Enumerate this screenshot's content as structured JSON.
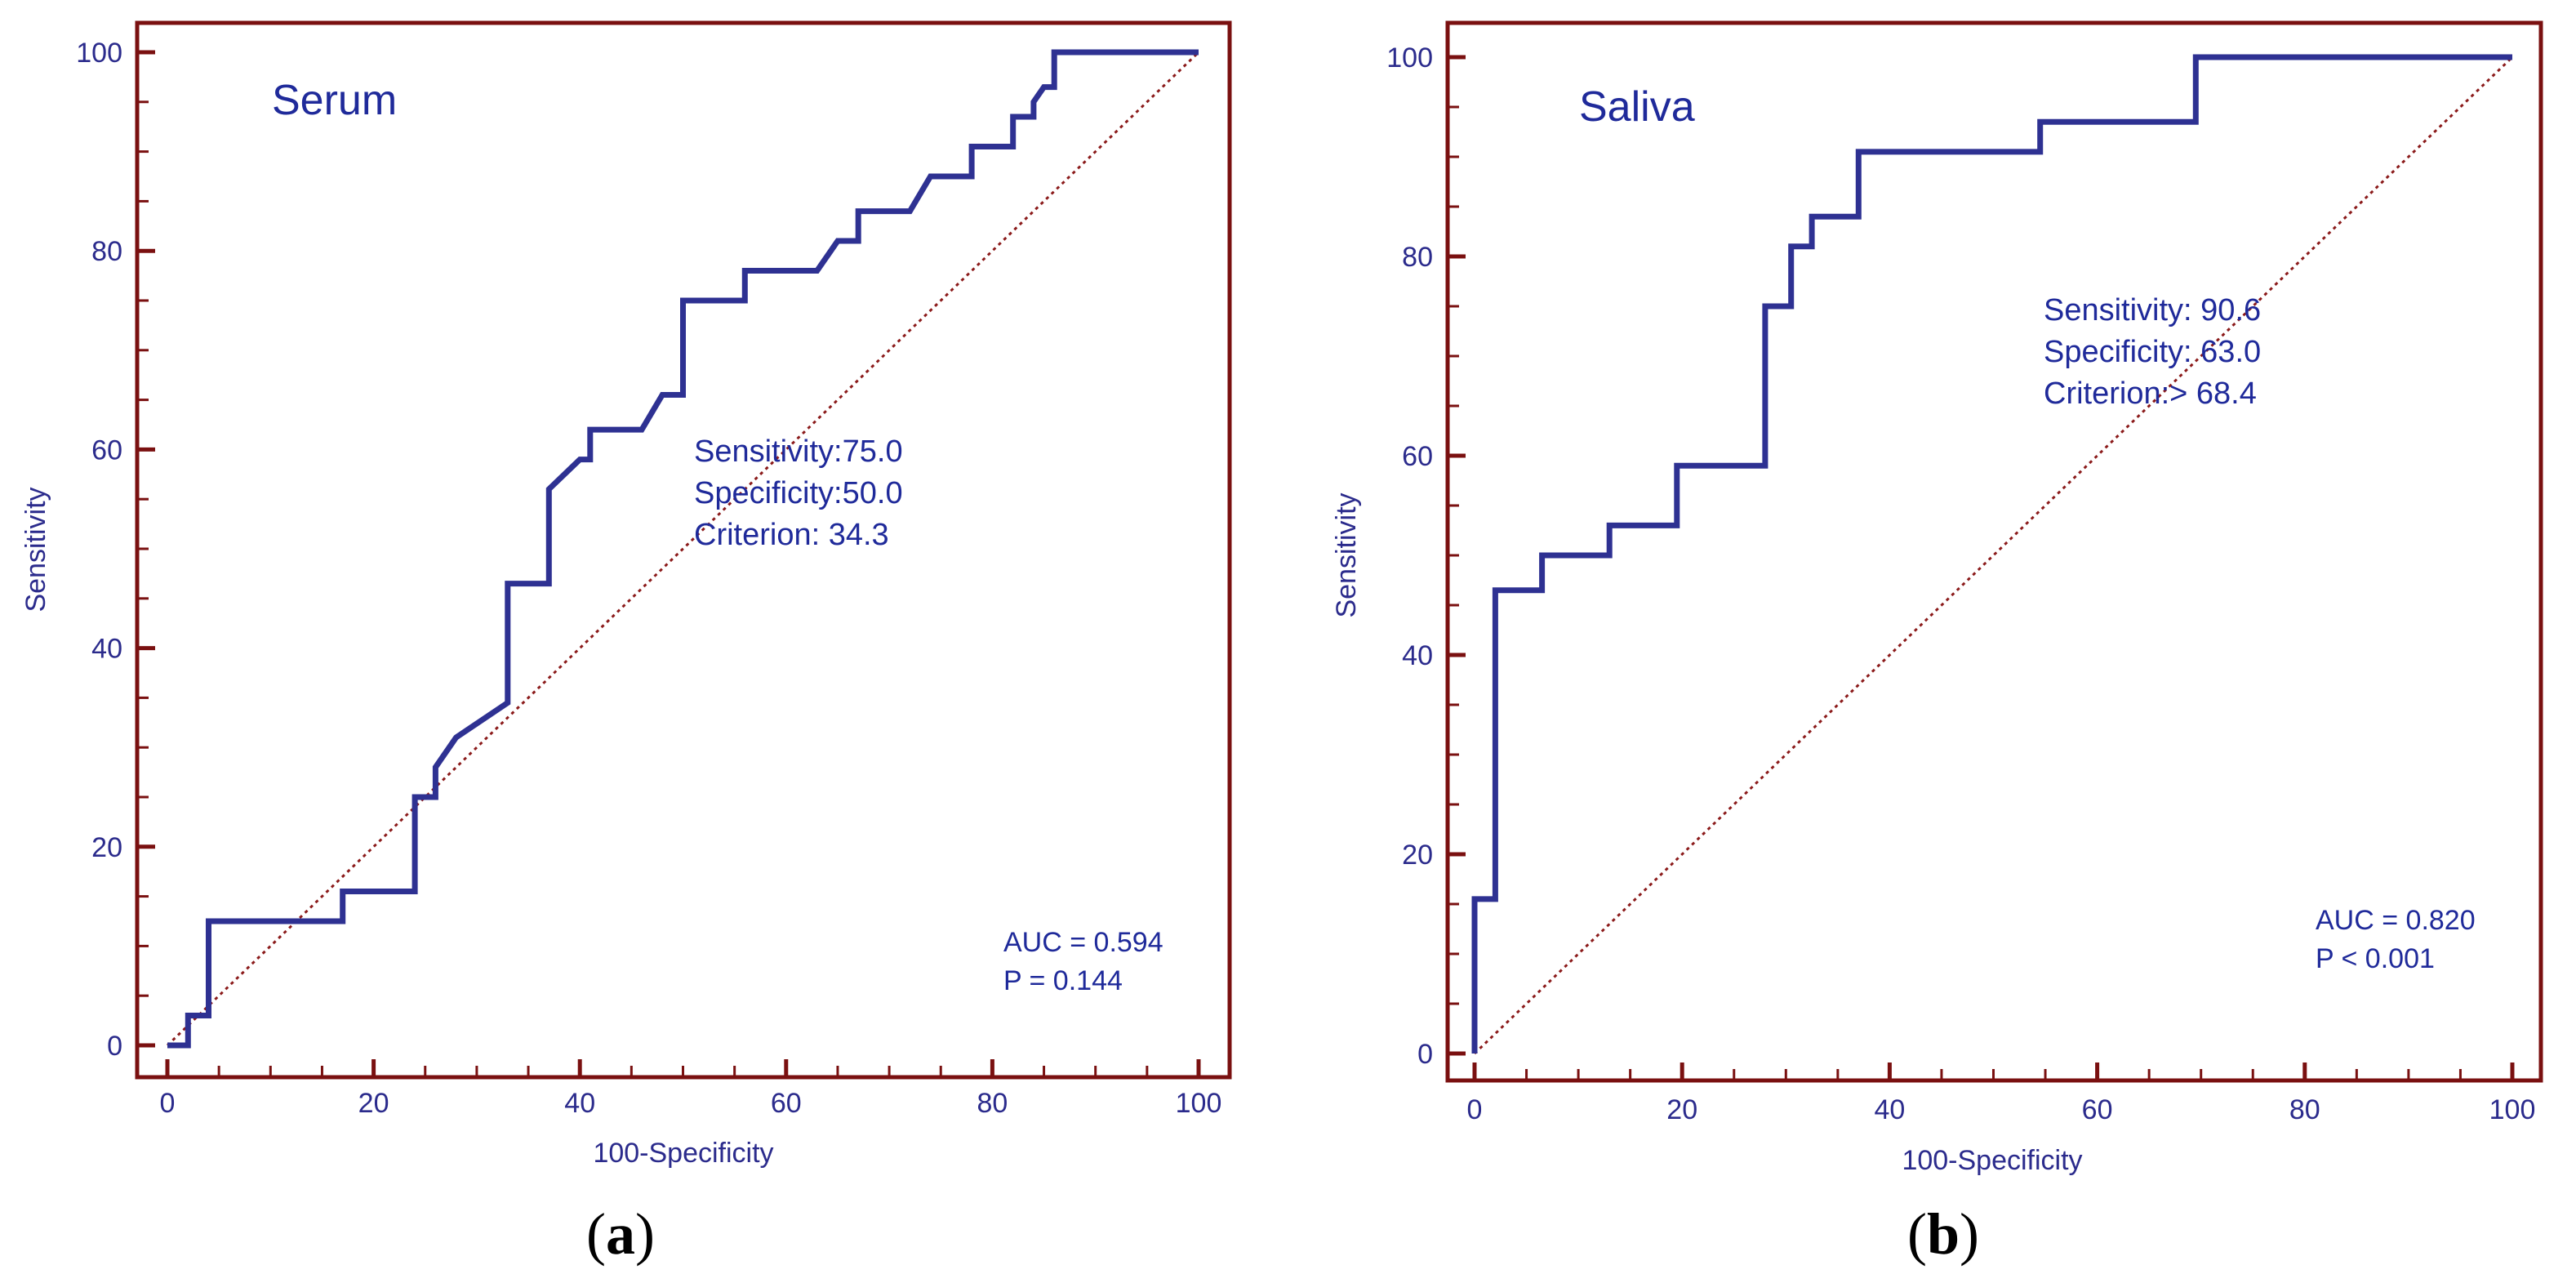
{
  "colors": {
    "frame": "#7a1010",
    "curve": "#2e3192",
    "diagonal": "#8b1a1a",
    "text": "#1f2a9a",
    "ticks": "#2b2b8c"
  },
  "chart_data": [
    {
      "type": "line",
      "panel_letter": "a",
      "title": "Serum",
      "xlabel": "100-Specificity",
      "ylabel": "Sensitivity",
      "xlim": [
        0,
        100
      ],
      "ylim": [
        0,
        100
      ],
      "xticks": [
        "0",
        "20",
        "40",
        "60",
        "80",
        "100"
      ],
      "yticks": [
        "0",
        "20",
        "40",
        "60",
        "80",
        "100"
      ],
      "series": [
        {
          "name": "ROC curve",
          "x": [
            0,
            2,
            2,
            4,
            4,
            17,
            17,
            24,
            24,
            26,
            26,
            28,
            33,
            33,
            37,
            37,
            40,
            41,
            41,
            46,
            48,
            50,
            50,
            56,
            56,
            63,
            65,
            67,
            67,
            72,
            74,
            78,
            78,
            82,
            82,
            84,
            84,
            85,
            86,
            86,
            87,
            100
          ],
          "y": [
            0,
            0,
            3,
            3,
            12.5,
            12.5,
            15.5,
            15.5,
            25,
            25,
            28,
            31,
            34.5,
            46.5,
            46.5,
            56,
            59,
            59,
            62,
            62,
            65.5,
            65.5,
            75,
            75,
            78,
            78,
            81,
            81,
            84,
            84,
            87.5,
            87.5,
            90.5,
            90.5,
            93.5,
            93.5,
            95,
            96.5,
            96.5,
            100,
            100,
            100
          ]
        },
        {
          "name": "Reference diagonal",
          "x": [
            0,
            100
          ],
          "y": [
            0,
            100
          ]
        }
      ],
      "annotation": [
        "Sensitivity:75.0",
        "Specificity:50.0",
        "Criterion: 34.3"
      ],
      "stats": [
        "AUC = 0.594",
        "P = 0.144"
      ]
    },
    {
      "type": "line",
      "panel_letter": "b",
      "title": "Saliva",
      "xlabel": "100-Specificity",
      "ylabel": "Sensitivity",
      "xlim": [
        0,
        100
      ],
      "ylim": [
        0,
        100
      ],
      "xticks": [
        "0",
        "20",
        "40",
        "60",
        "80",
        "100"
      ],
      "yticks": [
        "0",
        "20",
        "40",
        "60",
        "80",
        "100"
      ],
      "series": [
        {
          "name": "ROC curve",
          "x": [
            0,
            0,
            2,
            2,
            6.5,
            6.5,
            13,
            13,
            19.5,
            19.5,
            28,
            28,
            30.5,
            30.5,
            32.5,
            32.5,
            37,
            37,
            54.5,
            54.5,
            69.5,
            69.5,
            100
          ],
          "y": [
            0,
            15.5,
            15.5,
            46.5,
            46.5,
            50,
            50,
            53,
            53,
            59,
            59,
            75,
            75,
            81,
            81,
            84,
            84,
            90.5,
            90.5,
            93.5,
            93.5,
            100,
            100
          ]
        },
        {
          "name": "Reference diagonal",
          "x": [
            0,
            100
          ],
          "y": [
            0,
            100
          ]
        }
      ],
      "annotation": [
        "Sensitivity: 90.6",
        "Specificity: 63.0",
        "Criterion:> 68.4"
      ],
      "stats": [
        "AUC = 0.820",
        "P < 0.001"
      ]
    }
  ]
}
